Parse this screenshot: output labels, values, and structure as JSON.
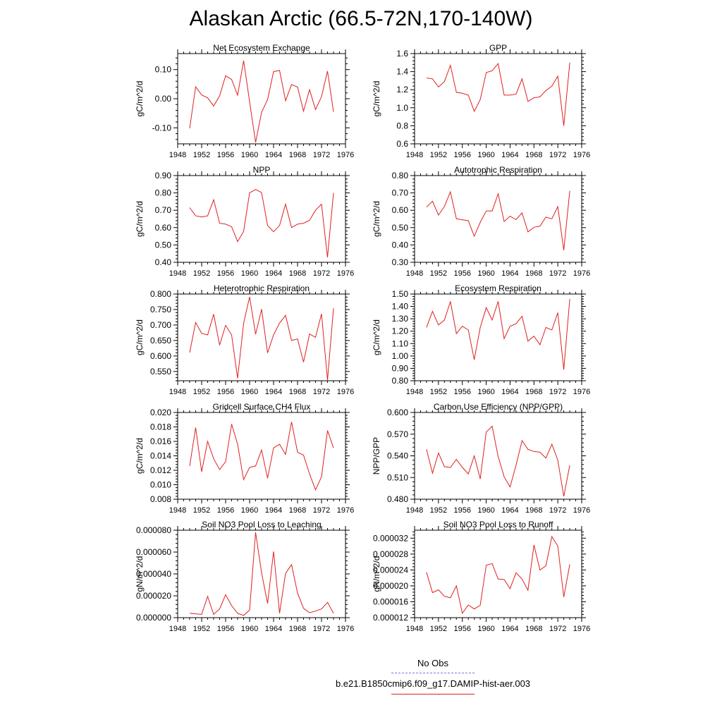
{
  "title": "Alaskan Arctic (66.5-72N,170-140W)",
  "legend": {
    "entries": [
      {
        "label": "No Obs",
        "color": "#7777dd",
        "style": "dashed"
      },
      {
        "label": "b.e21.B1850cmip6.f09_g17.DAMIP-hist-aer.003",
        "color": "#e02020",
        "style": "solid"
      }
    ]
  },
  "chart_data": [
    {
      "type": "line",
      "title": "Net Ecosystem Exchange",
      "ylabel": "gC/m^2/d",
      "xlim": [
        1948,
        1976
      ],
      "xticks": [
        "1948",
        "1952",
        "1956",
        "1960",
        "1964",
        "1968",
        "1972",
        "1976"
      ],
      "ylim": [
        -0.155,
        0.155
      ],
      "yticks": [
        "-0.10",
        "0.00",
        "0.10"
      ],
      "x": [
        1950,
        1951,
        1952,
        1953,
        1954,
        1955,
        1956,
        1957,
        1958,
        1959,
        1960,
        1961,
        1962,
        1963,
        1964,
        1965,
        1966,
        1967,
        1968,
        1969,
        1970,
        1971,
        1972,
        1973,
        1974
      ],
      "series": [
        {
          "values": [
            -0.102,
            0.041,
            0.013,
            0.003,
            -0.025,
            0.01,
            0.079,
            0.066,
            0.012,
            0.131,
            -0.01,
            -0.15,
            -0.047,
            -0.003,
            0.093,
            0.097,
            -0.007,
            0.049,
            0.04,
            -0.043,
            0.031,
            -0.037,
            0.007,
            0.095,
            -0.045
          ]
        }
      ]
    },
    {
      "type": "line",
      "title": "GPP",
      "ylabel": "gC/m^2/d",
      "xlim": [
        1948,
        1976
      ],
      "xticks": [
        "1948",
        "1952",
        "1956",
        "1960",
        "1964",
        "1968",
        "1972",
        "1976"
      ],
      "ylim": [
        0.6,
        1.6
      ],
      "yticks": [
        "0.6",
        "0.8",
        "1.0",
        "1.2",
        "1.4",
        "1.6"
      ],
      "x": [
        1950,
        1951,
        1952,
        1953,
        1954,
        1955,
        1956,
        1957,
        1958,
        1959,
        1960,
        1961,
        1962,
        1963,
        1964,
        1965,
        1966,
        1967,
        1968,
        1969,
        1970,
        1971,
        1972,
        1973,
        1974
      ],
      "series": [
        {
          "values": [
            1.33,
            1.32,
            1.23,
            1.29,
            1.47,
            1.17,
            1.16,
            1.14,
            0.96,
            1.09,
            1.39,
            1.41,
            1.49,
            1.14,
            1.14,
            1.15,
            1.32,
            1.07,
            1.11,
            1.12,
            1.19,
            1.24,
            1.35,
            0.8,
            1.5
          ]
        }
      ]
    },
    {
      "type": "line",
      "title": "NPP",
      "ylabel": "gC/m^2/d",
      "xlim": [
        1948,
        1976
      ],
      "xticks": [
        "1948",
        "1952",
        "1956",
        "1960",
        "1964",
        "1968",
        "1972",
        "1976"
      ],
      "ylim": [
        0.4,
        0.9
      ],
      "yticks": [
        "0.40",
        "0.50",
        "0.60",
        "0.70",
        "0.80",
        "0.90"
      ],
      "x": [
        1950,
        1951,
        1952,
        1953,
        1954,
        1955,
        1956,
        1957,
        1958,
        1959,
        1960,
        1961,
        1962,
        1963,
        1964,
        1965,
        1966,
        1967,
        1968,
        1969,
        1970,
        1971,
        1972,
        1973,
        1974
      ],
      "series": [
        {
          "values": [
            0.715,
            0.668,
            0.661,
            0.668,
            0.761,
            0.625,
            0.62,
            0.605,
            0.519,
            0.578,
            0.8,
            0.82,
            0.802,
            0.612,
            0.576,
            0.612,
            0.735,
            0.6,
            0.62,
            0.625,
            0.642,
            0.7,
            0.735,
            0.428,
            0.8
          ]
        }
      ]
    },
    {
      "type": "line",
      "title": "Autotrophic Respiration",
      "ylabel": "gC/m^2/d",
      "xlim": [
        1948,
        1976
      ],
      "xticks": [
        "1948",
        "1952",
        "1956",
        "1960",
        "1964",
        "1968",
        "1972",
        "1976"
      ],
      "ylim": [
        0.3,
        0.8
      ],
      "yticks": [
        "0.30",
        "0.40",
        "0.50",
        "0.60",
        "0.70",
        "0.80"
      ],
      "x": [
        1950,
        1951,
        1952,
        1953,
        1954,
        1955,
        1956,
        1957,
        1958,
        1959,
        1960,
        1961,
        1962,
        1963,
        1964,
        1965,
        1966,
        1967,
        1968,
        1969,
        1970,
        1971,
        1972,
        1973,
        1974
      ],
      "series": [
        {
          "values": [
            0.618,
            0.652,
            0.572,
            0.622,
            0.706,
            0.551,
            0.545,
            0.54,
            0.45,
            0.53,
            0.596,
            0.596,
            0.695,
            0.535,
            0.566,
            0.546,
            0.585,
            0.475,
            0.502,
            0.508,
            0.56,
            0.551,
            0.621,
            0.369,
            0.712
          ]
        }
      ]
    },
    {
      "type": "line",
      "title": "Heterotrophic Respiration",
      "ylabel": "gC/m^2/d",
      "xlim": [
        1948,
        1976
      ],
      "xticks": [
        "1948",
        "1952",
        "1956",
        "1960",
        "1964",
        "1968",
        "1972",
        "1976"
      ],
      "ylim": [
        0.52,
        0.8
      ],
      "yticks": [
        "0.550",
        "0.600",
        "0.650",
        "0.700",
        "0.750",
        "0.800"
      ],
      "x": [
        1950,
        1951,
        1952,
        1953,
        1954,
        1955,
        1956,
        1957,
        1958,
        1959,
        1960,
        1961,
        1962,
        1963,
        1964,
        1965,
        1966,
        1967,
        1968,
        1969,
        1970,
        1971,
        1972,
        1973,
        1974
      ],
      "series": [
        {
          "values": [
            0.611,
            0.708,
            0.673,
            0.668,
            0.735,
            0.635,
            0.699,
            0.668,
            0.528,
            0.705,
            0.791,
            0.67,
            0.751,
            0.61,
            0.668,
            0.706,
            0.731,
            0.65,
            0.655,
            0.58,
            0.671,
            0.66,
            0.736,
            0.522,
            0.754
          ]
        }
      ]
    },
    {
      "type": "line",
      "title": "Ecosystem Respiration",
      "ylabel": "gC/m^2/d",
      "xlim": [
        1948,
        1976
      ],
      "xticks": [
        "1948",
        "1952",
        "1956",
        "1960",
        "1964",
        "1968",
        "1972",
        "1976"
      ],
      "ylim": [
        0.8,
        1.5
      ],
      "yticks": [
        "0.80",
        "0.90",
        "1.00",
        "1.10",
        "1.20",
        "1.30",
        "1.40",
        "1.50"
      ],
      "x": [
        1950,
        1951,
        1952,
        1953,
        1954,
        1955,
        1956,
        1957,
        1958,
        1959,
        1960,
        1961,
        1962,
        1963,
        1964,
        1965,
        1966,
        1967,
        1968,
        1969,
        1970,
        1971,
        1972,
        1973,
        1974
      ],
      "series": [
        {
          "values": [
            1.23,
            1.36,
            1.25,
            1.29,
            1.44,
            1.18,
            1.24,
            1.21,
            0.97,
            1.23,
            1.39,
            1.29,
            1.44,
            1.14,
            1.24,
            1.26,
            1.32,
            1.12,
            1.16,
            1.09,
            1.23,
            1.21,
            1.35,
            0.89,
            1.46
          ]
        }
      ]
    },
    {
      "type": "line",
      "title": "Gridcell Surface CH4 Flux",
      "ylabel": "gC/m^2/d",
      "xlim": [
        1948,
        1976
      ],
      "xticks": [
        "1948",
        "1952",
        "1956",
        "1960",
        "1964",
        "1968",
        "1972",
        "1976"
      ],
      "ylim": [
        0.008,
        0.02
      ],
      "yticks": [
        "0.008",
        "0.010",
        "0.012",
        "0.014",
        "0.016",
        "0.018",
        "0.020"
      ],
      "x": [
        1950,
        1951,
        1952,
        1953,
        1954,
        1955,
        1956,
        1957,
        1958,
        1959,
        1960,
        1961,
        1962,
        1963,
        1964,
        1965,
        1966,
        1967,
        1968,
        1969,
        1970,
        1971,
        1972,
        1973,
        1974
      ],
      "series": [
        {
          "values": [
            0.0126,
            0.0179,
            0.0118,
            0.016,
            0.0136,
            0.0121,
            0.0132,
            0.0184,
            0.0156,
            0.0107,
            0.0124,
            0.0126,
            0.0148,
            0.0109,
            0.0151,
            0.0156,
            0.0142,
            0.0187,
            0.0145,
            0.0141,
            0.0115,
            0.0093,
            0.0111,
            0.0175,
            0.0151
          ]
        }
      ]
    },
    {
      "type": "line",
      "title": "Carbon Use Efficiency (NPP/GPP)",
      "ylabel": "NPP/GPP",
      "xlim": [
        1948,
        1976
      ],
      "xticks": [
        "1948",
        "1952",
        "1956",
        "1960",
        "1964",
        "1968",
        "1972",
        "1976"
      ],
      "ylim": [
        0.48,
        0.6
      ],
      "yticks": [
        "0.480",
        "0.510",
        "0.540",
        "0.570",
        "0.600"
      ],
      "x": [
        1950,
        1951,
        1952,
        1953,
        1954,
        1955,
        1956,
        1957,
        1958,
        1959,
        1960,
        1961,
        1962,
        1963,
        1964,
        1965,
        1966,
        1967,
        1968,
        1969,
        1970,
        1971,
        1972,
        1973,
        1974
      ],
      "series": [
        {
          "values": [
            0.549,
            0.516,
            0.544,
            0.525,
            0.524,
            0.535,
            0.524,
            0.515,
            0.54,
            0.508,
            0.573,
            0.581,
            0.539,
            0.511,
            0.497,
            0.527,
            0.561,
            0.549,
            0.546,
            0.545,
            0.537,
            0.556,
            0.534,
            0.484,
            0.527
          ]
        }
      ]
    },
    {
      "type": "line",
      "title": "Soil NO3 Pool Loss to Leaching",
      "ylabel": "gN/m^2/d",
      "xlim": [
        1948,
        1976
      ],
      "xticks": [
        "1948",
        "1952",
        "1956",
        "1960",
        "1964",
        "1968",
        "1972",
        "1976"
      ],
      "ylim": [
        0.0,
        8e-05
      ],
      "yticks": [
        "0.000000",
        "0.000020",
        "0.000040",
        "0.000060",
        "0.000080"
      ],
      "x": [
        1950,
        1951,
        1952,
        1953,
        1954,
        1955,
        1956,
        1957,
        1958,
        1959,
        1960,
        1961,
        1962,
        1963,
        1964,
        1965,
        1966,
        1967,
        1968,
        1969,
        1970,
        1971,
        1972,
        1973,
        1974
      ],
      "series": [
        {
          "values": [
            4e-06,
            3.5e-06,
            3e-06,
            1.95e-05,
            3e-06,
            8e-06,
            2.1e-05,
            1.1e-05,
            4e-06,
            2e-06,
            7e-06,
            7.8e-05,
            4.1e-05,
            1.3e-05,
            6.05e-05,
            4e-06,
            4.05e-05,
            4.85e-05,
            2.25e-05,
            8.5e-06,
            4.5e-06,
            6e-06,
            8e-06,
            1.4e-05,
            4e-06
          ]
        }
      ]
    },
    {
      "type": "line",
      "title": "Soil NO3 Pool Loss to Runoff",
      "ylabel": "gN/m^2/d",
      "xlim": [
        1948,
        1976
      ],
      "xticks": [
        "1948",
        "1952",
        "1956",
        "1960",
        "1964",
        "1968",
        "1972",
        "1976"
      ],
      "ylim": [
        1.2e-05,
        3.4e-05
      ],
      "yticks": [
        "0.000012",
        "0.000016",
        "0.000020",
        "0.000024",
        "0.000028",
        "0.000032"
      ],
      "x": [
        1950,
        1951,
        1952,
        1953,
        1954,
        1955,
        1956,
        1957,
        1958,
        1959,
        1960,
        1961,
        1962,
        1963,
        1964,
        1965,
        1966,
        1967,
        1968,
        1969,
        1970,
        1971,
        1972,
        1973,
        1974
      ],
      "series": [
        {
          "values": [
            2.34e-05,
            1.83e-05,
            1.9e-05,
            1.74e-05,
            1.7e-05,
            2e-05,
            1.31e-05,
            1.52e-05,
            1.42e-05,
            1.51e-05,
            2.52e-05,
            2.56e-05,
            2.17e-05,
            2.16e-05,
            1.93e-05,
            2.33e-05,
            2.17e-05,
            1.89e-05,
            3.03e-05,
            2.4e-05,
            2.5e-05,
            3.24e-05,
            3e-05,
            1.72e-05,
            2.54e-05
          ]
        }
      ]
    }
  ]
}
